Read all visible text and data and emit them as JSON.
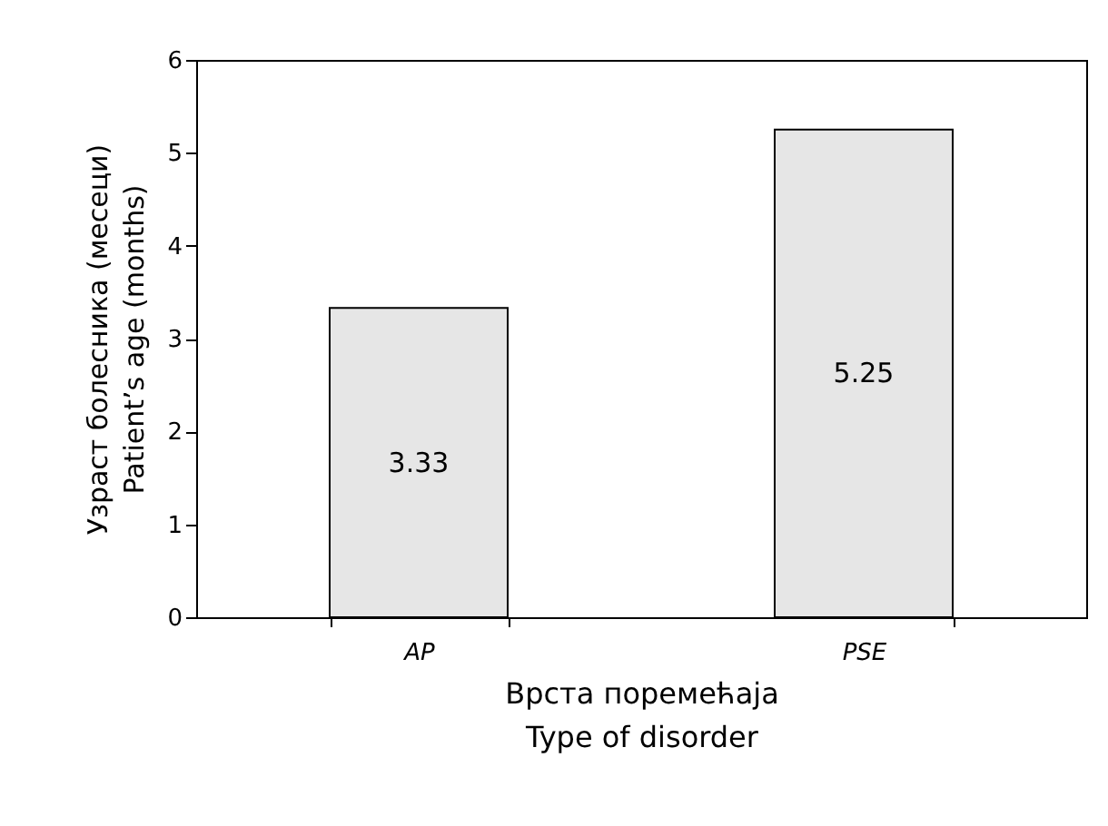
{
  "chart_data": {
    "type": "bar",
    "xlabel": "Врста поремећаја\nType of disorder",
    "ylabel": "Узраст болесника (месеци)\nPatient’s age (months)",
    "categories": [
      "AP",
      "PSE"
    ],
    "values": [
      3.33,
      5.25
    ],
    "color": "#e6e6e6",
    "ylim": [
      0,
      6
    ],
    "yticks": [
      0,
      1,
      2,
      3,
      4,
      5,
      6
    ],
    "grid": false,
    "data_labels": true
  }
}
